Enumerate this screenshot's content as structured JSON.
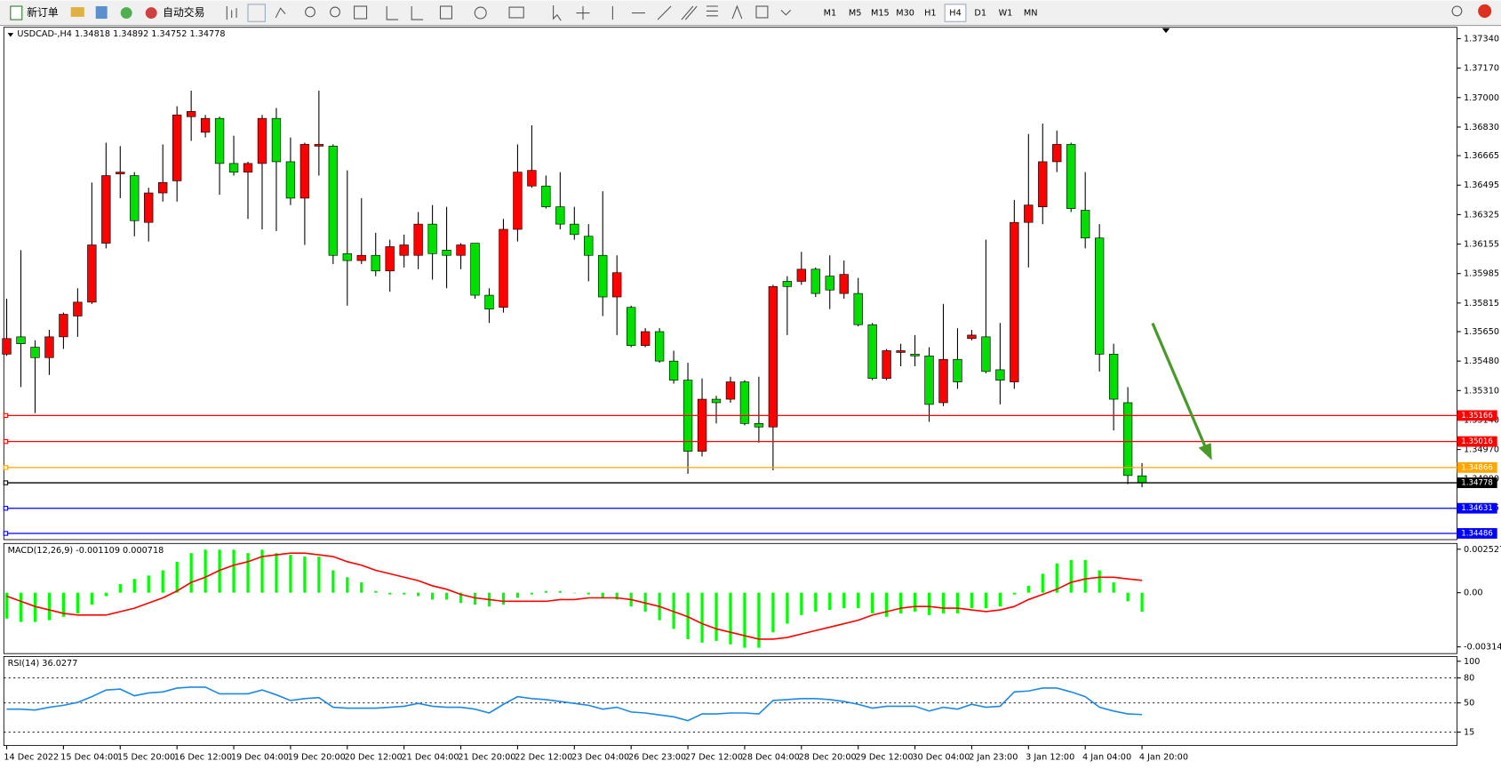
{
  "toolbar": {
    "new_order": "新订单",
    "auto_trading": "自动交易",
    "timeframes": [
      "M1",
      "M5",
      "M15",
      "M30",
      "H1",
      "H4",
      "D1",
      "W1",
      "MN"
    ],
    "active_timeframe": "H4"
  },
  "chart_data": [
    {
      "type": "candlestick",
      "title": "USDCAD-,H4  1.34818 1.34892 1.34752 1.34778",
      "categories": [
        "14 Dec 2022",
        null,
        null,
        null,
        "15 Dec 04:00",
        null,
        null,
        null,
        "15 Dec 20:00",
        null,
        null,
        null,
        "16 Dec 12:00",
        null,
        null,
        null,
        "19 Dec 04:00",
        null,
        null,
        null,
        "19 Dec 20:00",
        null,
        null,
        null,
        "20 Dec 12:00",
        null,
        null,
        null,
        "21 Dec 04:00",
        null,
        null,
        null,
        "21 Dec 20:00",
        null,
        null,
        null,
        "22 Dec 12:00",
        null,
        null,
        null,
        "23 Dec 04:00",
        null,
        null,
        null,
        "26 Dec 23:00",
        null,
        null,
        null,
        "27 Dec 12:00",
        null,
        null,
        null,
        "28 Dec 04:00",
        null,
        null,
        null,
        "28 Dec 20:00",
        null,
        null,
        null,
        "29 Dec 12:00",
        null,
        null,
        null,
        "30 Dec 04:00",
        null,
        null,
        null,
        "2 Jan 23:00",
        null,
        null,
        null,
        "3 Jan 12:00",
        null,
        null,
        null,
        "4 Jan 04:00",
        null,
        null,
        null,
        "4 Jan 20:00"
      ],
      "open": [
        1.3552,
        1.3562,
        1.3556,
        1.355,
        1.3562,
        1.3574,
        1.3582,
        1.3616,
        1.3656,
        1.3655,
        1.3628,
        1.3645,
        1.3652,
        1.3689,
        1.368,
        1.3688,
        1.3662,
        1.3657,
        1.3662,
        1.3688,
        1.3663,
        1.3642,
        1.3672,
        1.3672,
        1.361,
        1.3606,
        1.3609,
        1.36,
        1.3609,
        1.3609,
        1.3627,
        1.3612,
        1.3609,
        1.3616,
        1.3586,
        1.3579,
        1.3624,
        1.3649,
        1.3649,
        1.3637,
        1.3627,
        1.362,
        1.3609,
        1.3585,
        1.3579,
        1.3557,
        1.3565,
        1.3548,
        1.3537,
        1.3496,
        1.3526,
        1.3526,
        1.3536,
        1.3512,
        1.351,
        1.3594,
        1.3594,
        1.3601,
        1.3597,
        1.3587,
        1.3587,
        1.3569,
        1.3538,
        1.3553,
        1.3552,
        1.3551,
        1.3524,
        1.3549,
        1.3561,
        1.3562,
        1.3543,
        1.3536,
        1.3628,
        1.3637,
        1.3663,
        1.3673,
        1.3635,
        1.3619,
        1.3552,
        1.3524,
        1.34818
      ],
      "high": [
        1.3584,
        1.3612,
        1.356,
        1.3566,
        1.3576,
        1.359,
        1.3651,
        1.3674,
        1.3672,
        1.3657,
        1.3648,
        1.3673,
        1.3695,
        1.3704,
        1.369,
        1.3689,
        1.3678,
        1.3663,
        1.369,
        1.3694,
        1.3677,
        1.3674,
        1.3704,
        1.3673,
        1.3658,
        1.3642,
        1.3622,
        1.3618,
        1.3621,
        1.3634,
        1.3638,
        1.3637,
        1.3616,
        1.3616,
        1.359,
        1.363,
        1.3673,
        1.3684,
        1.3655,
        1.3657,
        1.3637,
        1.3627,
        1.3646,
        1.3609,
        1.358,
        1.3567,
        1.3567,
        1.3554,
        1.3547,
        1.3538,
        1.3528,
        1.3539,
        1.3537,
        1.3539,
        1.3592,
        1.3597,
        1.3611,
        1.3602,
        1.3609,
        1.3606,
        1.3596,
        1.357,
        1.3555,
        1.3558,
        1.3563,
        1.3556,
        1.3581,
        1.3567,
        1.3566,
        1.3618,
        1.357,
        1.3641,
        1.3679,
        1.3685,
        1.3681,
        1.3674,
        1.3657,
        1.3627,
        1.3558,
        1.3533,
        1.34892
      ],
      "low": [
        1.3551,
        1.3533,
        1.3518,
        1.354,
        1.3555,
        1.3562,
        1.3581,
        1.3613,
        1.3642,
        1.362,
        1.3617,
        1.364,
        1.364,
        1.3675,
        1.3677,
        1.3644,
        1.3655,
        1.363,
        1.3624,
        1.3623,
        1.3638,
        1.3615,
        1.3655,
        1.3604,
        1.358,
        1.3604,
        1.3597,
        1.3588,
        1.3602,
        1.3601,
        1.3595,
        1.359,
        1.3601,
        1.3584,
        1.357,
        1.3576,
        1.3617,
        1.3648,
        1.3636,
        1.3624,
        1.3618,
        1.3594,
        1.3574,
        1.3563,
        1.3556,
        1.3556,
        1.3547,
        1.3535,
        1.3483,
        1.3493,
        1.3512,
        1.3524,
        1.3511,
        1.3501,
        1.3485,
        1.3563,
        1.3592,
        1.3585,
        1.3578,
        1.3584,
        1.3568,
        1.3537,
        1.3537,
        1.3545,
        1.3545,
        1.3513,
        1.3522,
        1.3532,
        1.356,
        1.3541,
        1.3523,
        1.3532,
        1.3602,
        1.3627,
        1.3657,
        1.3634,
        1.3613,
        1.3542,
        1.3508,
        1.3477,
        1.34752
      ],
      "close": [
        1.3561,
        1.3558,
        1.355,
        1.3562,
        1.3575,
        1.3582,
        1.3615,
        1.3655,
        1.3657,
        1.3629,
        1.3645,
        1.3651,
        1.369,
        1.3692,
        1.3688,
        1.3662,
        1.3657,
        1.3662,
        1.3688,
        1.3663,
        1.3642,
        1.3673,
        1.3673,
        1.3609,
        1.3606,
        1.3609,
        1.36,
        1.3614,
        1.3615,
        1.3627,
        1.361,
        1.3609,
        1.3615,
        1.3586,
        1.3578,
        1.3624,
        1.3657,
        1.3658,
        1.3637,
        1.3627,
        1.3621,
        1.3609,
        1.3585,
        1.3599,
        1.3557,
        1.3565,
        1.3548,
        1.3537,
        1.3496,
        1.3526,
        1.3524,
        1.3536,
        1.3512,
        1.351,
        1.3591,
        1.3591,
        1.3601,
        1.3587,
        1.3589,
        1.3598,
        1.3569,
        1.3538,
        1.3554,
        1.3554,
        1.3551,
        1.3523,
        1.3549,
        1.3536,
        1.3563,
        1.3542,
        1.3537,
        1.3628,
        1.3638,
        1.3663,
        1.3673,
        1.3636,
        1.3619,
        1.3552,
        1.3526,
        1.3482,
        1.34778
      ],
      "up_color": "#ff0000",
      "down_color": "#00e000",
      "wick_color": "#000000",
      "ylim": [
        1.3445,
        1.374
      ],
      "yticks": [
        {
          "value": 1.3734,
          "label": "1.37340"
        },
        {
          "value": 1.3717,
          "label": "1.37170"
        },
        {
          "value": 1.37,
          "label": "1.37000"
        },
        {
          "value": 1.3683,
          "label": "1.36830"
        },
        {
          "value": 1.36665,
          "label": "1.36665"
        },
        {
          "value": 1.36495,
          "label": "1.36495"
        },
        {
          "value": 1.36325,
          "label": "1.36325"
        },
        {
          "value": 1.36155,
          "label": "1.36155"
        },
        {
          "value": 1.35985,
          "label": "1.35985"
        },
        {
          "value": 1.35815,
          "label": "1.35815"
        },
        {
          "value": 1.3565,
          "label": "1.35650"
        },
        {
          "value": 1.3548,
          "label": "1.35480"
        },
        {
          "value": 1.3531,
          "label": "1.35310"
        },
        {
          "value": 1.3514,
          "label": "1.35140"
        },
        {
          "value": 1.3497,
          "label": "1.34970"
        },
        {
          "value": 1.348,
          "label": "1.34800"
        },
        {
          "value": 1.34635,
          "label": "1.34635"
        }
      ],
      "levels": [
        {
          "price": 1.35166,
          "color": "#ff0000"
        },
        {
          "price": 1.35016,
          "color": "#ff0000"
        },
        {
          "price": 1.34866,
          "color": "#ffa500"
        },
        {
          "price": 1.34778,
          "color": "#000000"
        },
        {
          "price": 1.34631,
          "color": "#0000ff"
        },
        {
          "price": 1.34486,
          "color": "#0000ff"
        }
      ]
    },
    {
      "type": "macd",
      "title": "MACD(12,26,9) -0.001109 0.000718",
      "histogram": [
        -0.0015,
        -0.0017,
        -0.0017,
        -0.0016,
        -0.0014,
        -0.0012,
        -0.0007,
        -0.0002,
        0.0005,
        0.0008,
        0.001,
        0.0013,
        0.0018,
        0.0023,
        0.0025,
        0.0025,
        0.0025,
        0.0023,
        0.0025,
        0.0023,
        0.0022,
        0.0021,
        0.0021,
        0.0013,
        0.0009,
        0.0006,
        0.0001,
        -0.0001,
        -0.0001,
        -0.0002,
        -0.0004,
        -0.0004,
        -0.0006,
        -0.0007,
        -0.0008,
        -0.0007,
        -0.0003,
        -0.0001,
        0.0001,
        0.0001,
        0,
        -0.0001,
        -0.0003,
        -0.0004,
        -0.0008,
        -0.0011,
        -0.0016,
        -0.0021,
        -0.0027,
        -0.0029,
        -0.0028,
        -0.003,
        -0.0032,
        -0.0032,
        -0.0023,
        -0.0018,
        -0.0013,
        -0.0011,
        -0.001,
        -0.0009,
        -0.0009,
        -0.0012,
        -0.0014,
        -0.0012,
        -0.0011,
        -0.0013,
        -0.0012,
        -0.0012,
        -0.0009,
        -0.0009,
        -0.0008,
        -0.0001,
        0.0004,
        0.0011,
        0.0017,
        0.0019,
        0.0019,
        0.0013,
        0.0006,
        -0.0005,
        -0.001109
      ],
      "signal": [
        -0.0002,
        -0.0005,
        -0.0008,
        -0.001,
        -0.0012,
        -0.0013,
        -0.0013,
        -0.0013,
        -0.0011,
        -0.0009,
        -0.0006,
        -0.0003,
        0.0001,
        0.0006,
        0.0009,
        0.0013,
        0.0016,
        0.0018,
        0.0021,
        0.0022,
        0.0023,
        0.0023,
        0.0022,
        0.0021,
        0.0018,
        0.0016,
        0.0013,
        0.0011,
        0.0009,
        0.0007,
        0.0004,
        0.0002,
        -0.0001,
        -0.0003,
        -0.0004,
        -0.0005,
        -0.0005,
        -0.0005,
        -0.0005,
        -0.0004,
        -0.0004,
        -0.0003,
        -0.0003,
        -0.0003,
        -0.0004,
        -0.0006,
        -0.0008,
        -0.0011,
        -0.0014,
        -0.0018,
        -0.0021,
        -0.0023,
        -0.0025,
        -0.0027,
        -0.0027,
        -0.0026,
        -0.0024,
        -0.0022,
        -0.002,
        -0.0018,
        -0.0016,
        -0.0013,
        -0.0011,
        -0.0009,
        -0.0008,
        -0.0008,
        -0.0009,
        -0.0009,
        -0.001,
        -0.0011,
        -0.001,
        -0.0008,
        -0.0004,
        -0.0001,
        0.0002,
        0.0006,
        0.0008,
        0.0009,
        0.0009,
        0.0008,
        0.000718
      ],
      "histogram_color": "#00ff00",
      "signal_color": "#ff0000",
      "ylim": [
        -0.003149,
        0.002527
      ],
      "yticks": [
        0.002527,
        {
          "value": 0,
          "label": "0.00"
        },
        -0.003149
      ]
    },
    {
      "type": "rsi",
      "title": "RSI(14) 36.0277",
      "values": [
        42.5,
        42.5,
        41.4,
        44.8,
        47.1,
        50.6,
        57.5,
        65.5,
        66.6,
        58.6,
        62.0,
        63.2,
        67.8,
        68.9,
        68.9,
        60.9,
        60.9,
        60.9,
        65.5,
        59.7,
        52.9,
        55.2,
        56.3,
        44.8,
        43.7,
        43.7,
        43.7,
        44.8,
        46.0,
        49.4,
        46.0,
        44.8,
        44.8,
        42.5,
        37.9,
        48.3,
        57.5,
        55.2,
        54.0,
        51.7,
        49.4,
        47.1,
        42.5,
        44.8,
        39.1,
        37.9,
        35.6,
        33.3,
        28.7,
        36.8,
        36.8,
        37.9,
        37.9,
        36.8,
        52.9,
        54.0,
        55.2,
        55.2,
        54.0,
        51.7,
        48.3,
        43.7,
        46.0,
        46.0,
        46.0,
        40.2,
        44.8,
        42.5,
        48.3,
        44.8,
        46.0,
        63.2,
        64.3,
        67.8,
        67.8,
        63.2,
        57.5,
        44.8,
        40.2,
        36.8,
        36.0277
      ],
      "color": "#1e88e5",
      "ylim": [
        0,
        100
      ],
      "yticks": [
        100,
        80,
        50,
        15
      ]
    }
  ]
}
